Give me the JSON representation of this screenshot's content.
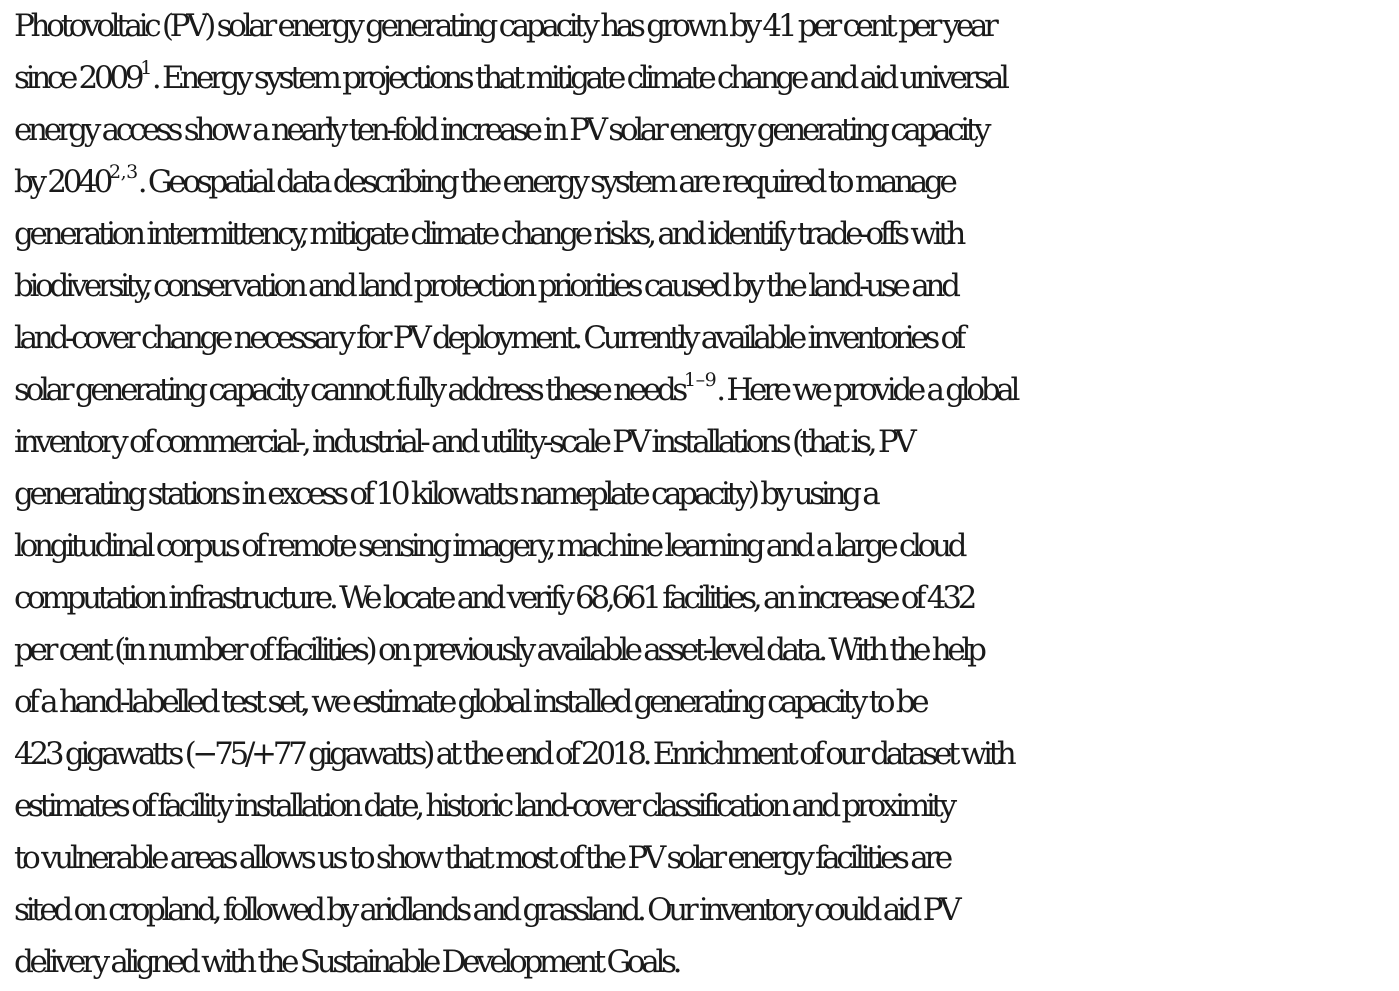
{
  "abstract": {
    "lines": [
      {
        "t": "Photovoltaic (PV) solar energy generating capacity has grown by 41 per cent per year"
      },
      {
        "t": "since 2009",
        "s": "1",
        "a": ". Energy system projections that mitigate climate change and aid universal"
      },
      {
        "t": "energy access show a nearly ten-fold increase in PV solar energy generating capacity"
      },
      {
        "t": "by 2040",
        "s": "2,3",
        "a": ". Geospatial data describing the energy system are required to manage"
      },
      {
        "t": "generation intermittency, mitigate climate change risks, and identify trade-offs with"
      },
      {
        "t": "biodiversity, conservation and land protection priorities caused by the land-use and"
      },
      {
        "t": "land-cover change necessary for PV deployment. Currently available inventories of"
      },
      {
        "t": "solar generating capacity cannot fully address these needs",
        "s": "1–9",
        "a": ". Here we provide a global"
      },
      {
        "t": "inventory of commercial-, industrial- and utility-scale PV installations (that is, PV"
      },
      {
        "t": "generating stations in excess of 10 kilowatts nameplate capacity) by using a"
      },
      {
        "t": "longitudinal corpus of remote sensing imagery, machine learning and a large cloud"
      },
      {
        "t": "computation infrastructure. We locate and verify 68,661 facilities, an increase of 432"
      },
      {
        "t": "per cent (in number of facilities) on previously available asset-level data. With the help"
      },
      {
        "t": "of a hand-labelled test set, we estimate global installed generating capacity to be"
      },
      {
        "t": "423 gigawatts (−75/+77 gigawatts) at the end of 2018. Enrichment of our dataset with"
      },
      {
        "t": "estimates of facility installation date, historic land-cover classification and proximity"
      },
      {
        "t": "to vulnerable areas allows us to show that most of the PV solar energy facilities are"
      },
      {
        "t": "sited on cropland, followed by aridlands and grassland. Our inventory could aid PV"
      },
      {
        "t": "delivery aligned with the Sustainable Development Goals."
      }
    ]
  }
}
